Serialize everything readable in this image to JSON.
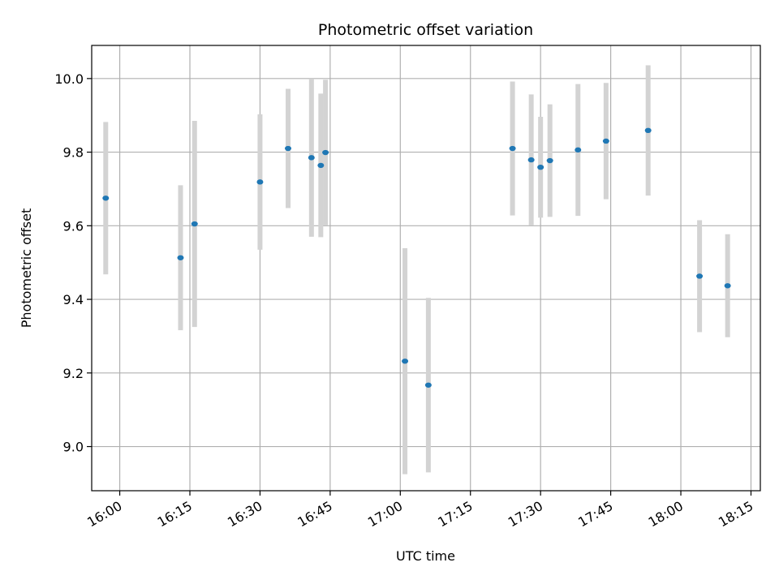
{
  "chart_data": {
    "type": "scatter",
    "title": "Photometric offset variation",
    "xlabel": "UTC time",
    "ylabel": "Photometric offset",
    "x_axis": {
      "type": "time",
      "range": [
        "15:54",
        "18:17"
      ],
      "ticks": [
        "16:00",
        "16:15",
        "16:30",
        "16:45",
        "17:00",
        "17:15",
        "17:30",
        "17:45",
        "18:00",
        "18:15"
      ]
    },
    "y_axis": {
      "range": [
        8.88,
        10.09
      ],
      "ticks": [
        9.0,
        9.2,
        9.4,
        9.6,
        9.8,
        10.0
      ],
      "tick_labels": [
        "9.0",
        "9.2",
        "9.4",
        "9.6",
        "9.8",
        "10.0"
      ]
    },
    "grid": true,
    "colors": {
      "point": "#1f77b4",
      "errorbar": "#d3d3d3",
      "grid": "#b0b0b0"
    },
    "points": [
      {
        "x": "15:57",
        "y": 9.675,
        "err": 0.207
      },
      {
        "x": "16:13",
        "y": 9.513,
        "err": 0.197
      },
      {
        "x": "16:16",
        "y": 9.605,
        "err": 0.28
      },
      {
        "x": "16:30",
        "y": 9.719,
        "err": 0.184
      },
      {
        "x": "16:36",
        "y": 9.81,
        "err": 0.162
      },
      {
        "x": "16:41",
        "y": 9.785,
        "err": 0.215
      },
      {
        "x": "16:43",
        "y": 9.764,
        "err": 0.195
      },
      {
        "x": "16:44",
        "y": 9.799,
        "err": 0.198
      },
      {
        "x": "17:01",
        "y": 9.232,
        "err": 0.307
      },
      {
        "x": "17:06",
        "y": 9.167,
        "err": 0.237
      },
      {
        "x": "17:24",
        "y": 9.81,
        "err": 0.182
      },
      {
        "x": "17:28",
        "y": 9.779,
        "err": 0.178
      },
      {
        "x": "17:30",
        "y": 9.759,
        "err": 0.137
      },
      {
        "x": "17:32",
        "y": 9.777,
        "err": 0.153
      },
      {
        "x": "17:38",
        "y": 9.806,
        "err": 0.179
      },
      {
        "x": "17:44",
        "y": 9.83,
        "err": 0.158
      },
      {
        "x": "17:53",
        "y": 9.859,
        "err": 0.177
      },
      {
        "x": "18:04",
        "y": 9.463,
        "err": 0.152
      },
      {
        "x": "18:10",
        "y": 9.437,
        "err": 0.14
      }
    ]
  }
}
